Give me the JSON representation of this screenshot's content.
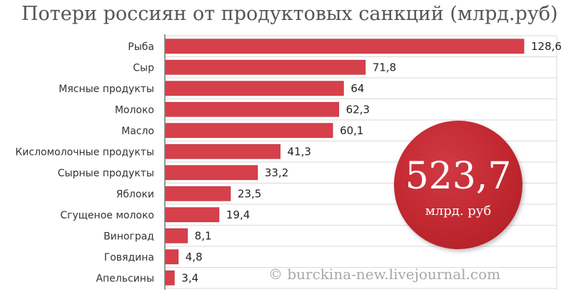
{
  "chart_data": {
    "type": "bar",
    "orientation": "horizontal",
    "title": "Потери россиян от продуктовых санкций (млрд.руб)",
    "categories": [
      "Рыба",
      "Сыр",
      "Мясные продукты",
      "Молоко",
      "Масло",
      "Кисломолочные продукты",
      "Сырные продукты",
      "Яблоки",
      "Сгущеное молоко",
      "Виноград",
      "Говядина",
      "Апельсины"
    ],
    "values": [
      128.6,
      71.8,
      64,
      62.3,
      60.1,
      41.3,
      33.2,
      23.5,
      19.4,
      8.1,
      4.8,
      3.4
    ],
    "value_labels": [
      "128,6",
      "71,8",
      "64",
      "62,3",
      "60,1",
      "41,3",
      "33,2",
      "23,5",
      "19,4",
      "8,1",
      "4,8",
      "3,4"
    ],
    "xlim": [
      0,
      128.6
    ],
    "grid": true,
    "colors": {
      "bar": "#d6404b",
      "bar_edge": "#c33540",
      "grid": "#d9d9d9",
      "axis": "#777777"
    }
  },
  "total": {
    "value": "523,7",
    "unit": "млрд. руб",
    "color": "#c1272f"
  },
  "watermark": "© burckina-new.livejournal.com"
}
